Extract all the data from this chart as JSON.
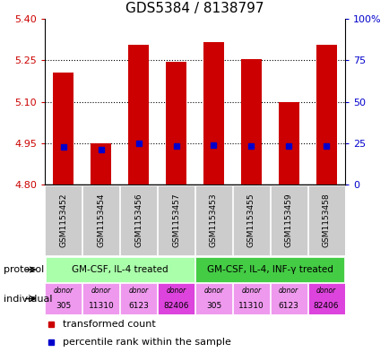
{
  "title": "GDS5384 / 8138797",
  "samples": [
    "GSM1153452",
    "GSM1153454",
    "GSM1153456",
    "GSM1153457",
    "GSM1153453",
    "GSM1153455",
    "GSM1153459",
    "GSM1153458"
  ],
  "transformed_counts": [
    5.205,
    4.948,
    5.305,
    5.245,
    5.315,
    5.255,
    5.1,
    5.305
  ],
  "percentile_values": [
    4.937,
    4.928,
    4.948,
    4.938,
    4.943,
    4.938,
    4.938,
    4.94
  ],
  "ylim": [
    4.8,
    5.4
  ],
  "yticks_left": [
    4.8,
    4.95,
    5.1,
    5.25,
    5.4
  ],
  "yticks_right": [
    0,
    25,
    50,
    75,
    100
  ],
  "bar_color": "#cc0000",
  "percentile_color": "#0000cc",
  "bar_width": 0.55,
  "protocols": [
    "GM-CSF, IL-4 treated",
    "GM-CSF, IL-4, INF-γ treated"
  ],
  "protocol_color_light": "#aaffaa",
  "protocol_color_dark": "#44cc44",
  "donors": [
    "305",
    "11310",
    "6123",
    "82406",
    "305",
    "11310",
    "6123",
    "82406"
  ],
  "donor_colors": [
    "#ee99ee",
    "#ee99ee",
    "#ee99ee",
    "#dd44dd",
    "#ee99ee",
    "#ee99ee",
    "#ee99ee",
    "#dd44dd"
  ],
  "sample_bg_color": "#cccccc",
  "left_label_color": "#cc0000",
  "right_label_color": "#0000cc",
  "title_fontsize": 11
}
